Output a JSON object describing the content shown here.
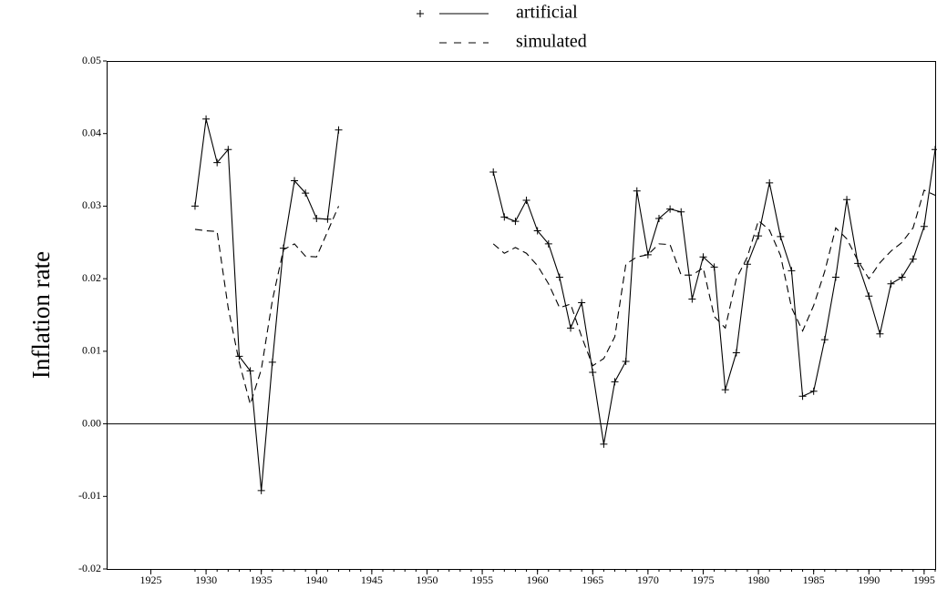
{
  "chart_data": {
    "type": "line",
    "y_label": "Inflation rate",
    "x": [
      1929,
      1930,
      1931,
      1932,
      1933,
      1934,
      1935,
      1936,
      1937,
      1938,
      1939,
      1940,
      1941,
      1942,
      1943,
      1944,
      1945,
      1946,
      1947,
      1948,
      1949,
      1950,
      1951,
      1952,
      1953,
      1954,
      1955,
      1956,
      1957,
      1958,
      1959,
      1960,
      1961,
      1962,
      1963,
      1964,
      1965,
      1966,
      1967,
      1968,
      1969,
      1970,
      1971,
      1972,
      1973,
      1974,
      1975,
      1976,
      1977,
      1978,
      1979,
      1980,
      1981,
      1982,
      1983,
      1984,
      1985,
      1986,
      1987,
      1988,
      1989,
      1990,
      1991,
      1992,
      1993,
      1994,
      1995,
      1996
    ],
    "series": [
      {
        "name": "artificial",
        "color": "#000000",
        "dash": "solid",
        "marker": "plus",
        "values": [
          0.03,
          0.042,
          0.036,
          0.0378,
          0.0093,
          0.0073,
          -0.0092,
          0.0085,
          0.0242,
          0.0335,
          0.0318,
          0.0283,
          0.0282,
          0.0405,
          null,
          null,
          null,
          null,
          null,
          null,
          null,
          null,
          null,
          null,
          null,
          null,
          null,
          0.0347,
          0.0285,
          0.0279,
          0.0308,
          0.0266,
          0.0248,
          0.0202,
          0.0132,
          0.0167,
          0.0071,
          -0.0028,
          0.0058,
          0.0086,
          0.0321,
          0.0233,
          0.0283,
          0.0296,
          0.0292,
          0.0172,
          0.023,
          0.0216,
          0.0047,
          0.0098,
          0.022,
          0.0259,
          0.0332,
          0.0258,
          0.0211,
          0.0038,
          0.0045,
          0.0116,
          0.0202,
          0.0309,
          0.0221,
          0.0176,
          0.0124,
          0.0193,
          0.0202,
          0.0227,
          0.0272,
          0.0378
        ]
      },
      {
        "name": "simulated",
        "color": "#000000",
        "dash": "dashed",
        "marker": null,
        "values": [
          0.0268,
          0.0266,
          0.0265,
          0.016,
          0.0085,
          0.0027,
          0.0075,
          0.017,
          0.024,
          0.0248,
          0.0231,
          0.023,
          0.0265,
          0.03,
          null,
          null,
          null,
          null,
          null,
          null,
          null,
          null,
          null,
          null,
          null,
          null,
          null,
          0.0248,
          0.0235,
          0.0243,
          0.0235,
          0.0218,
          0.0193,
          0.016,
          0.0165,
          0.012,
          0.008,
          0.009,
          0.012,
          0.022,
          0.023,
          0.0233,
          0.0248,
          0.0247,
          0.0205,
          0.0205,
          0.0215,
          0.0148,
          0.0132,
          0.02,
          0.023,
          0.028,
          0.0267,
          0.0232,
          0.016,
          0.0128,
          0.0163,
          0.021,
          0.027,
          0.0255,
          0.0225,
          0.02,
          0.0222,
          0.0238,
          0.025,
          0.027,
          0.0322,
          0.0315
        ]
      }
    ],
    "xlim": [
      1921,
      1996
    ],
    "xticks": [
      1925,
      1930,
      1935,
      1940,
      1945,
      1950,
      1955,
      1960,
      1965,
      1970,
      1975,
      1980,
      1985,
      1990,
      1995
    ],
    "ylim": [
      -0.02,
      0.05
    ],
    "yticks": [
      -0.02,
      -0.01,
      {
        "value": 0,
        "label": "0.00"
      },
      0.01,
      0.02,
      0.03,
      0.04,
      0.05
    ],
    "zero_line": true,
    "legend": "top"
  }
}
